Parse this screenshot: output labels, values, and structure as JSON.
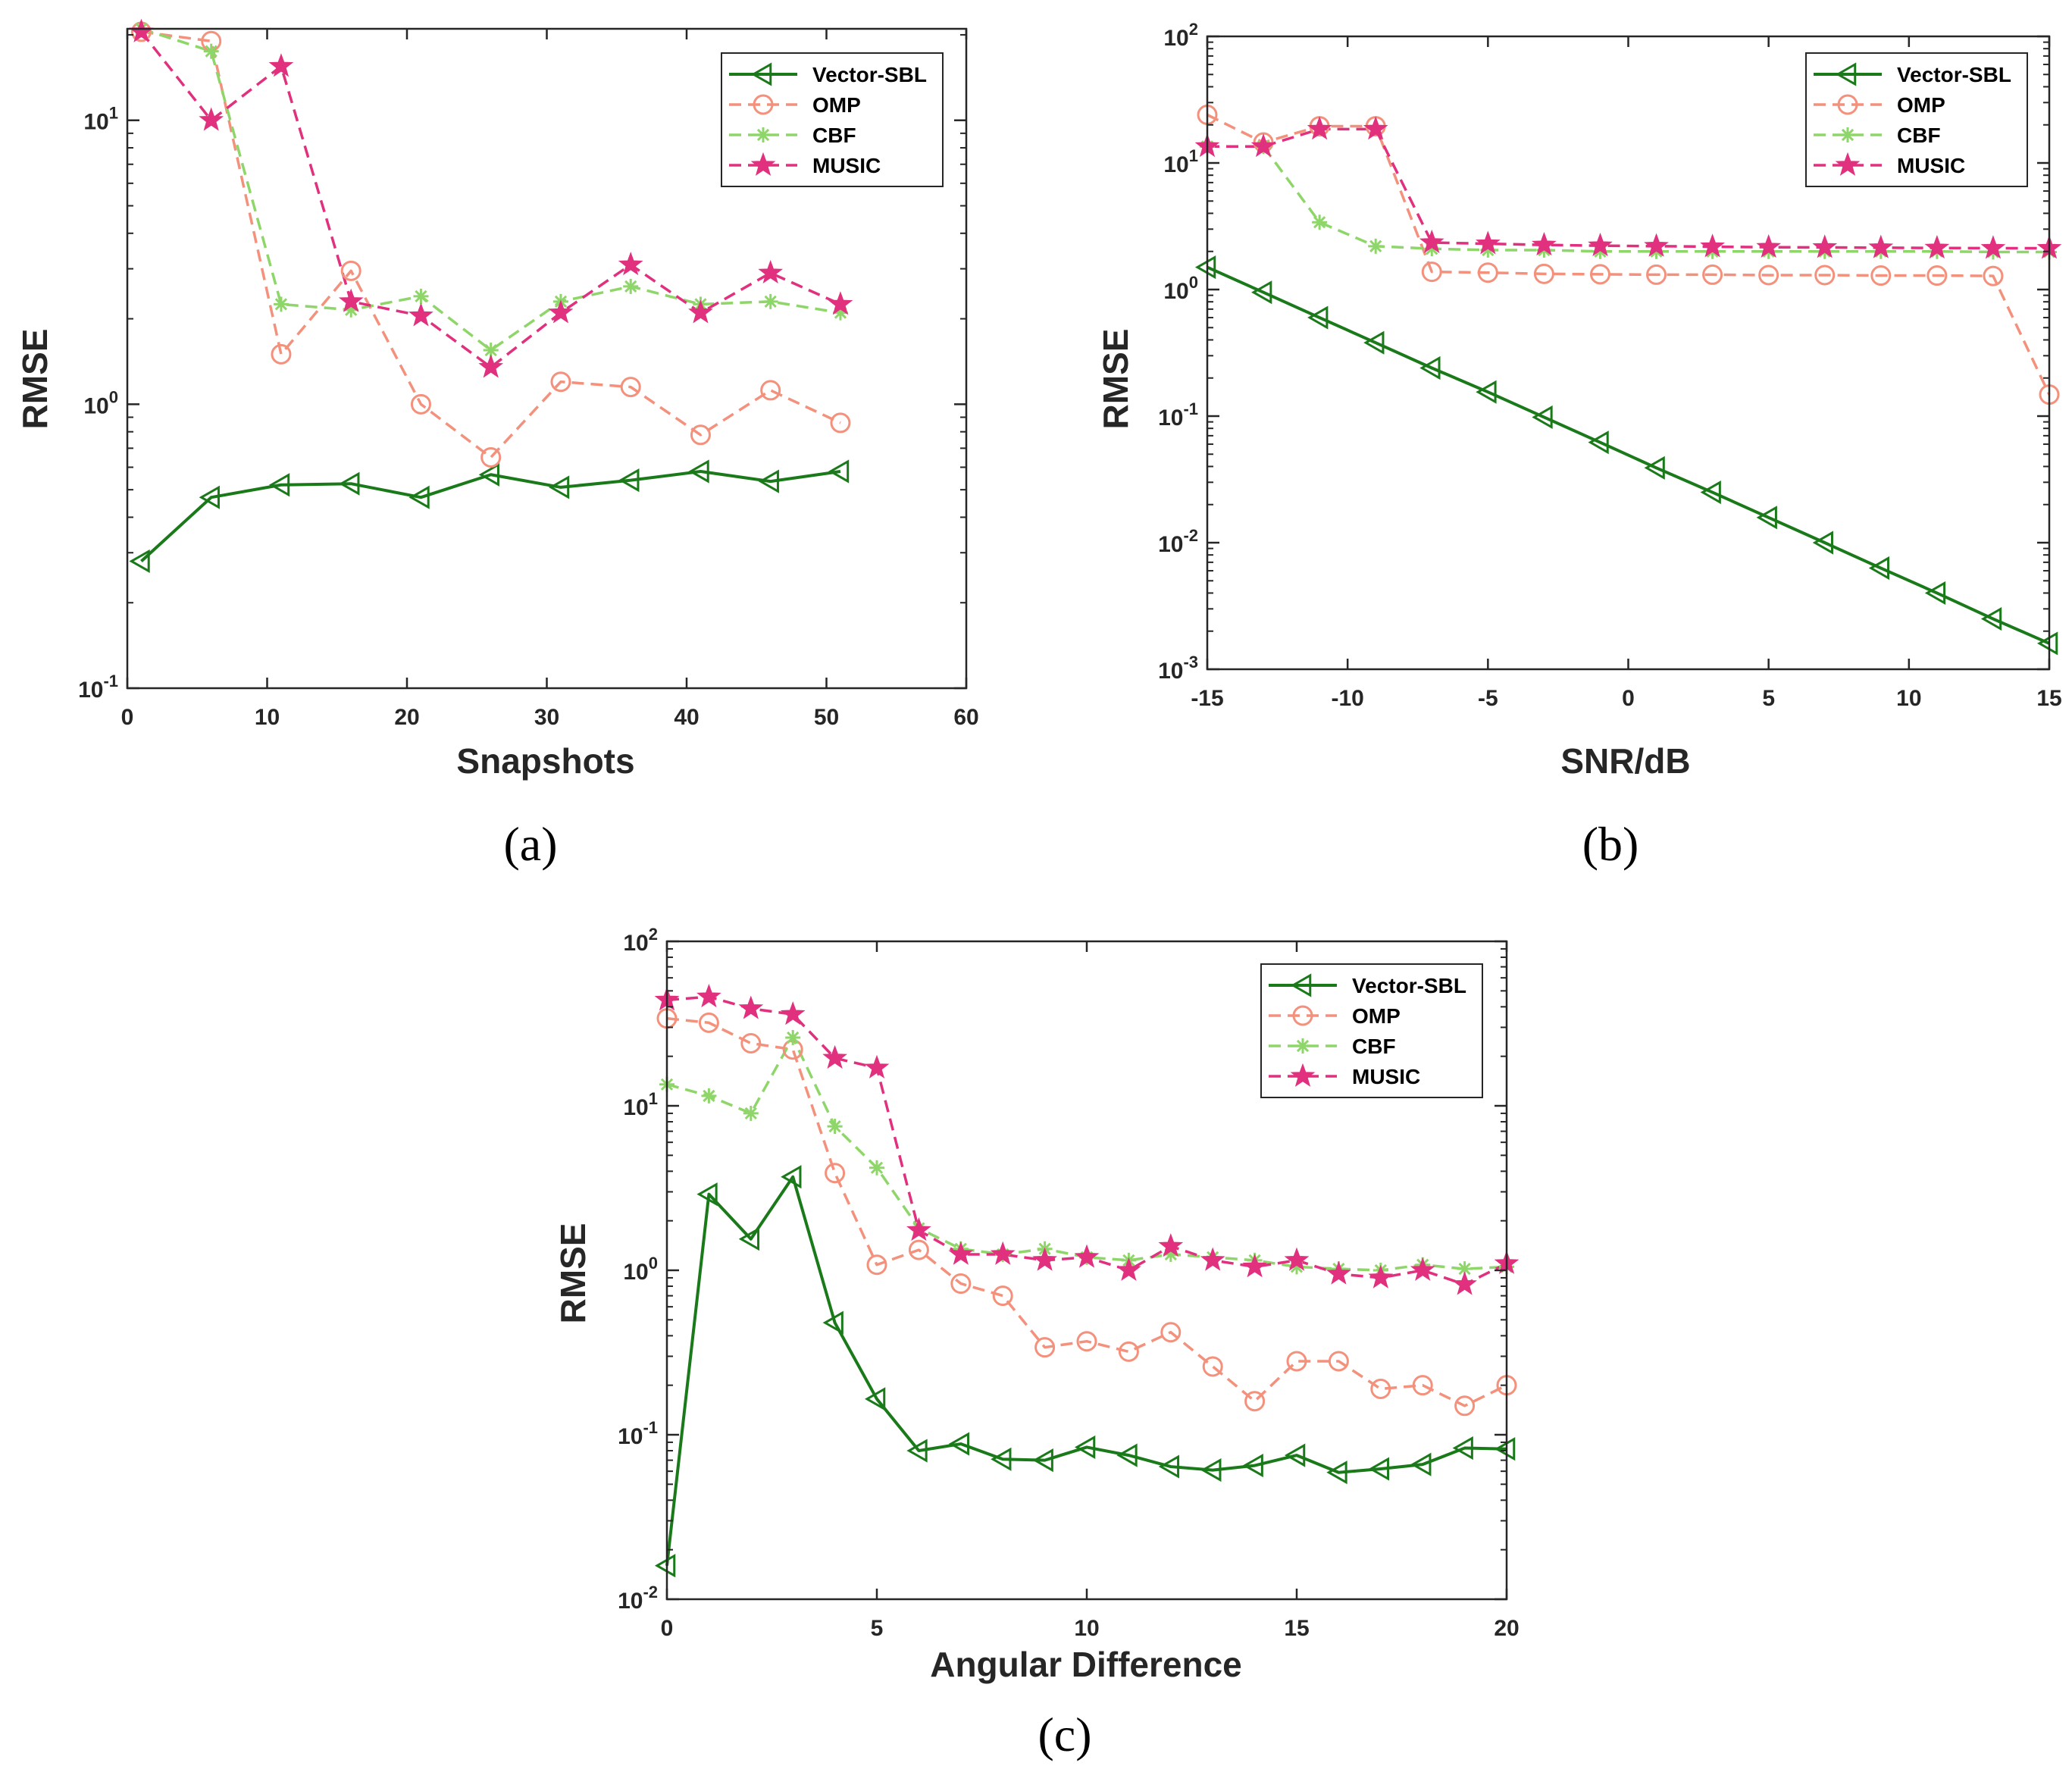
{
  "colors": {
    "vector_sbl": "#1a7a1a",
    "omp": "#f4917c",
    "cbf": "#8fd66a",
    "music": "#e0307e",
    "axis": "#262626"
  },
  "chart_data": [
    {
      "type": "line",
      "panel": "a",
      "caption": "(a)",
      "xlabel": "Snapshots",
      "ylabel": "RMSE",
      "xlim": [
        0,
        60
      ],
      "ylim": [
        0.1,
        21
      ],
      "yscale": "log",
      "xticks": [
        0,
        10,
        20,
        30,
        40,
        50,
        60
      ],
      "xtick_labels": [
        "0",
        "10",
        "20",
        "30",
        "40",
        "50",
        "60"
      ],
      "yticks": [
        0.1,
        1,
        10
      ],
      "ytick_labels": [
        [
          "10",
          "-1"
        ],
        [
          "10",
          "0"
        ],
        [
          "10",
          "1"
        ]
      ],
      "legend_position": "top-right",
      "grid": false,
      "x": [
        1,
        6,
        11,
        16,
        21,
        26,
        31,
        36,
        41,
        46,
        51
      ],
      "series": [
        {
          "name": "Vector-SBL",
          "color_key": "vector_sbl",
          "marker": "triangle-left",
          "dash": "solid",
          "values": [
            0.28,
            0.47,
            0.52,
            0.525,
            0.47,
            0.565,
            0.51,
            0.54,
            0.58,
            0.535,
            0.58
          ]
        },
        {
          "name": "OMP",
          "color_key": "omp",
          "marker": "circle",
          "dash": "dashed",
          "values": [
            20.5,
            19,
            1.5,
            2.95,
            1.0,
            0.65,
            1.2,
            1.15,
            0.78,
            1.12,
            0.86
          ]
        },
        {
          "name": "CBF",
          "color_key": "cbf",
          "marker": "asterisk",
          "dash": "dashed",
          "values": [
            21,
            17.5,
            2.25,
            2.15,
            2.4,
            1.55,
            2.3,
            2.6,
            2.25,
            2.3,
            2.1
          ]
        },
        {
          "name": "MUSIC",
          "color_key": "music",
          "marker": "star",
          "dash": "dashed",
          "values": [
            20.5,
            10,
            15.5,
            2.3,
            2.05,
            1.35,
            2.1,
            3.1,
            2.1,
            2.9,
            2.25
          ]
        }
      ]
    },
    {
      "type": "line",
      "panel": "b",
      "caption": "(b)",
      "xlabel": "SNR/dB",
      "ylabel": "RMSE",
      "xlim": [
        -15,
        15
      ],
      "ylim": [
        0.001,
        100
      ],
      "yscale": "log",
      "xticks": [
        -15,
        -10,
        -5,
        0,
        5,
        10,
        15
      ],
      "xtick_labels": [
        "-15",
        "-10",
        "-5",
        "0",
        "5",
        "10",
        "15"
      ],
      "yticks": [
        0.001,
        0.01,
        0.1,
        1,
        10,
        100
      ],
      "ytick_labels": [
        [
          "10",
          "-3"
        ],
        [
          "10",
          "-2"
        ],
        [
          "10",
          "-1"
        ],
        [
          "10",
          "0"
        ],
        [
          "10",
          "1"
        ],
        [
          "10",
          "2"
        ]
      ],
      "legend_position": "top-right",
      "grid": false,
      "x": [
        -15,
        -13,
        -11,
        -9,
        -7,
        -5,
        -3,
        -1,
        1,
        3,
        5,
        7,
        9,
        11,
        13,
        15
      ],
      "series": [
        {
          "name": "Vector-SBL",
          "color_key": "vector_sbl",
          "marker": "triangle-left",
          "dash": "solid",
          "values": [
            1.5,
            0.95,
            0.6,
            0.38,
            0.24,
            0.155,
            0.098,
            0.062,
            0.039,
            0.025,
            0.0158,
            0.01,
            0.0063,
            0.004,
            0.0025,
            0.0016
          ]
        },
        {
          "name": "OMP",
          "color_key": "omp",
          "marker": "circle",
          "dash": "dashed",
          "values": [
            24,
            14.5,
            19.5,
            19.5,
            1.38,
            1.36,
            1.33,
            1.32,
            1.31,
            1.31,
            1.3,
            1.3,
            1.29,
            1.29,
            1.28,
            0.148
          ]
        },
        {
          "name": "CBF",
          "color_key": "cbf",
          "marker": "asterisk",
          "dash": "dashed",
          "values": [
            13.5,
            13.5,
            3.4,
            2.2,
            2.1,
            2.05,
            2.05,
            2.0,
            2.0,
            2.0,
            2.0,
            2.0,
            2.0,
            2.0,
            1.98,
            1.98
          ]
        },
        {
          "name": "MUSIC",
          "color_key": "music",
          "marker": "star",
          "dash": "dashed",
          "values": [
            13.5,
            13.5,
            18.5,
            18.5,
            2.35,
            2.3,
            2.25,
            2.22,
            2.2,
            2.18,
            2.16,
            2.15,
            2.14,
            2.13,
            2.12,
            2.12
          ]
        }
      ]
    },
    {
      "type": "line",
      "panel": "c",
      "caption": "(c)",
      "xlabel": "Angular Difference",
      "ylabel": "RMSE",
      "xlim": [
        0,
        20
      ],
      "ylim": [
        0.01,
        100
      ],
      "yscale": "log",
      "xticks": [
        0,
        5,
        10,
        15,
        20
      ],
      "xtick_labels": [
        "0",
        "5",
        "10",
        "15",
        "20"
      ],
      "yticks": [
        0.01,
        0.1,
        1,
        10,
        100
      ],
      "ytick_labels": [
        [
          "10",
          "-2"
        ],
        [
          "10",
          "-1"
        ],
        [
          "10",
          "0"
        ],
        [
          "10",
          "1"
        ],
        [
          "10",
          "2"
        ]
      ],
      "legend_position": "top-right",
      "grid": false,
      "x": [
        0,
        1,
        2,
        3,
        4,
        5,
        6,
        7,
        8,
        9,
        10,
        11,
        12,
        13,
        14,
        15,
        16,
        17,
        18,
        19,
        20
      ],
      "series": [
        {
          "name": "Vector-SBL",
          "color_key": "vector_sbl",
          "marker": "triangle-left",
          "dash": "solid",
          "values": [
            0.016,
            2.9,
            1.55,
            3.7,
            0.48,
            0.165,
            0.08,
            0.088,
            0.071,
            0.07,
            0.084,
            0.075,
            0.064,
            0.061,
            0.065,
            0.075,
            0.059,
            0.062,
            0.066,
            0.083,
            0.082
          ]
        },
        {
          "name": "OMP",
          "color_key": "omp",
          "marker": "circle",
          "dash": "dashed",
          "values": [
            34,
            32,
            24,
            22,
            3.9,
            1.08,
            1.33,
            0.83,
            0.7,
            0.34,
            0.37,
            0.32,
            0.42,
            0.26,
            0.16,
            0.28,
            0.28,
            0.19,
            0.2,
            0.15,
            0.2
          ]
        },
        {
          "name": "CBF",
          "color_key": "cbf",
          "marker": "asterisk",
          "dash": "dashed",
          "values": [
            13.5,
            11.5,
            9,
            26,
            7.5,
            4.2,
            1.8,
            1.35,
            1.25,
            1.35,
            1.2,
            1.15,
            1.25,
            1.2,
            1.15,
            1.05,
            1.02,
            1.0,
            1.08,
            1.02,
            1.05
          ]
        },
        {
          "name": "MUSIC",
          "color_key": "music",
          "marker": "star",
          "dash": "dashed",
          "values": [
            44,
            46,
            39,
            36,
            19.5,
            17,
            1.75,
            1.25,
            1.25,
            1.15,
            1.2,
            1.0,
            1.4,
            1.15,
            1.05,
            1.15,
            0.95,
            0.9,
            1.0,
            0.82,
            1.1
          ]
        }
      ]
    }
  ]
}
